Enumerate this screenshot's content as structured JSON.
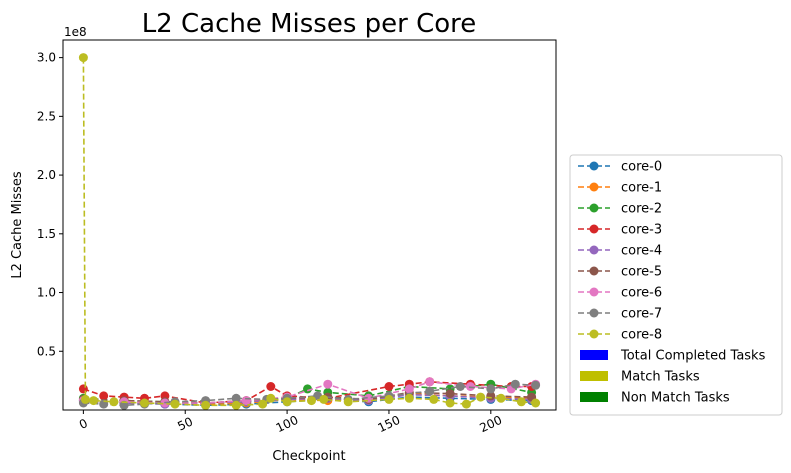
{
  "chart_data": {
    "type": "line",
    "title": "L2 Cache Misses per Core",
    "xlabel": "Checkpoint",
    "ylabel": "L2 Cache Misses",
    "y_multiplier_label": "1e8",
    "xlim": [
      -10,
      232
    ],
    "ylim": [
      0,
      315000000.0
    ],
    "x_ticks": [
      0,
      50,
      100,
      150,
      200
    ],
    "x_tick_labels": [
      "0",
      "50",
      "100",
      "150",
      "200"
    ],
    "y_ticks": [
      50000000.0,
      100000000.0,
      150000000.0,
      200000000.0,
      250000000.0,
      300000000.0
    ],
    "y_tick_labels": [
      "0.5",
      "1.0",
      "1.5",
      "2.0",
      "2.5",
      "3.0"
    ],
    "grid": false,
    "legend_position": "outside-right-bottom",
    "series": [
      {
        "name": "core-0",
        "color": "#1f77b4",
        "x": [
          0,
          20,
          40,
          60,
          80,
          100,
          120,
          140,
          160,
          180,
          200,
          220
        ],
        "values": [
          8000000.0,
          6000000.0,
          5000000.0,
          4000000.0,
          5000000.0,
          7000000.0,
          9000000.0,
          7000000.0,
          11000000.0,
          10000000.0,
          9000000.0,
          8000000.0
        ]
      },
      {
        "name": "core-1",
        "color": "#ff7f0e",
        "x": [
          0,
          20,
          40,
          60,
          80,
          100,
          120,
          140,
          160,
          180,
          200,
          220
        ],
        "values": [
          9000000.0,
          7000000.0,
          6000000.0,
          5000000.0,
          6000000.0,
          9000000.0,
          8000000.0,
          9000000.0,
          14000000.0,
          12000000.0,
          11000000.0,
          10000000.0
        ]
      },
      {
        "name": "core-2",
        "color": "#2ca02c",
        "x": [
          0,
          20,
          40,
          60,
          80,
          100,
          110,
          120,
          140,
          160,
          180,
          200,
          220
        ],
        "values": [
          10000000.0,
          8000000.0,
          7000000.0,
          6000000.0,
          7000000.0,
          10000000.0,
          18000000.0,
          15000000.0,
          12000000.0,
          20000000.0,
          18000000.0,
          22000000.0,
          15000000.0
        ]
      },
      {
        "name": "core-3",
        "color": "#d62728",
        "x": [
          0,
          10,
          20,
          30,
          40,
          60,
          80,
          92,
          100,
          120,
          150,
          160,
          170,
          190,
          210,
          220
        ],
        "values": [
          18000000.0,
          12000000.0,
          11000000.0,
          10000000.0,
          12000000.0,
          6000000.0,
          8000000.0,
          20000000.0,
          12000000.0,
          10000000.0,
          20000000.0,
          22000000.0,
          24000000.0,
          22000000.0,
          20000000.0,
          20000000.0
        ]
      },
      {
        "name": "core-4",
        "color": "#9467bd",
        "x": [
          0,
          20,
          40,
          60,
          80,
          100,
          120,
          140,
          160,
          180,
          200,
          220
        ],
        "values": [
          7000000.0,
          6000000.0,
          5000000.0,
          6000000.0,
          7000000.0,
          9000000.0,
          10000000.0,
          8000000.0,
          13000000.0,
          12000000.0,
          10000000.0,
          9000000.0
        ]
      },
      {
        "name": "core-5",
        "color": "#8c564b",
        "x": [
          0,
          20,
          40,
          60,
          80,
          100,
          120,
          140,
          160,
          180,
          200,
          220
        ],
        "values": [
          9000000.0,
          8000000.0,
          7000000.0,
          6000000.0,
          8000000.0,
          10000000.0,
          11000000.0,
          9000000.0,
          15000000.0,
          14000000.0,
          12000000.0,
          11000000.0
        ]
      },
      {
        "name": "core-6",
        "color": "#e377c2",
        "x": [
          0,
          20,
          40,
          60,
          80,
          100,
          120,
          140,
          160,
          170,
          190,
          210,
          222
        ],
        "values": [
          8000000.0,
          7000000.0,
          6000000.0,
          6000000.0,
          8000000.0,
          11000000.0,
          22000000.0,
          10000000.0,
          18000000.0,
          24000000.0,
          20000000.0,
          18000000.0,
          22000000.0
        ]
      },
      {
        "name": "core-7",
        "color": "#7f7f7f",
        "x": [
          0,
          10,
          20,
          30,
          45,
          60,
          75,
          90,
          100,
          115,
          130,
          150,
          170,
          185,
          200,
          212,
          222
        ],
        "values": [
          6000000.0,
          5000000.0,
          4000000.0,
          5000000.0,
          7000000.0,
          8000000.0,
          10000000.0,
          9000000.0,
          10000000.0,
          12000000.0,
          9000000.0,
          12000000.0,
          16000000.0,
          20000000.0,
          18000000.0,
          22000000.0,
          21000000.0
        ]
      },
      {
        "name": "core-8",
        "color": "#bcbd22",
        "x": [
          0,
          1,
          5,
          15,
          30,
          45,
          60,
          75,
          88,
          92,
          100,
          112,
          118,
          130,
          150,
          160,
          172,
          180,
          188,
          195,
          205,
          215,
          222
        ],
        "values": [
          300000000.0,
          9000000.0,
          8000000.0,
          7000000.0,
          6000000.0,
          5000000.0,
          4000000.0,
          4000000.0,
          5000000.0,
          10000000.0,
          7000000.0,
          8000000.0,
          9000000.0,
          7000000.0,
          9000000.0,
          10000000.0,
          9000000.0,
          6000000.0,
          5000000.0,
          11000000.0,
          10000000.0,
          7000000.0,
          6000000.0
        ]
      }
    ],
    "legend_entries": [
      {
        "label": "core-0",
        "kind": "line",
        "color": "#1f77b4"
      },
      {
        "label": "core-1",
        "kind": "line",
        "color": "#ff7f0e"
      },
      {
        "label": "core-2",
        "kind": "line",
        "color": "#2ca02c"
      },
      {
        "label": "core-3",
        "kind": "line",
        "color": "#d62728"
      },
      {
        "label": "core-4",
        "kind": "line",
        "color": "#9467bd"
      },
      {
        "label": "core-5",
        "kind": "line",
        "color": "#8c564b"
      },
      {
        "label": "core-6",
        "kind": "line",
        "color": "#e377c2"
      },
      {
        "label": "core-7",
        "kind": "line",
        "color": "#7f7f7f"
      },
      {
        "label": "core-8",
        "kind": "line",
        "color": "#bcbd22"
      },
      {
        "label": "Total Completed Tasks",
        "kind": "patch",
        "color": "#0000ff"
      },
      {
        "label": "Match Tasks",
        "kind": "patch",
        "color": "#bfbf00"
      },
      {
        "label": "Non Match Tasks",
        "kind": "patch",
        "color": "#008000"
      }
    ]
  }
}
